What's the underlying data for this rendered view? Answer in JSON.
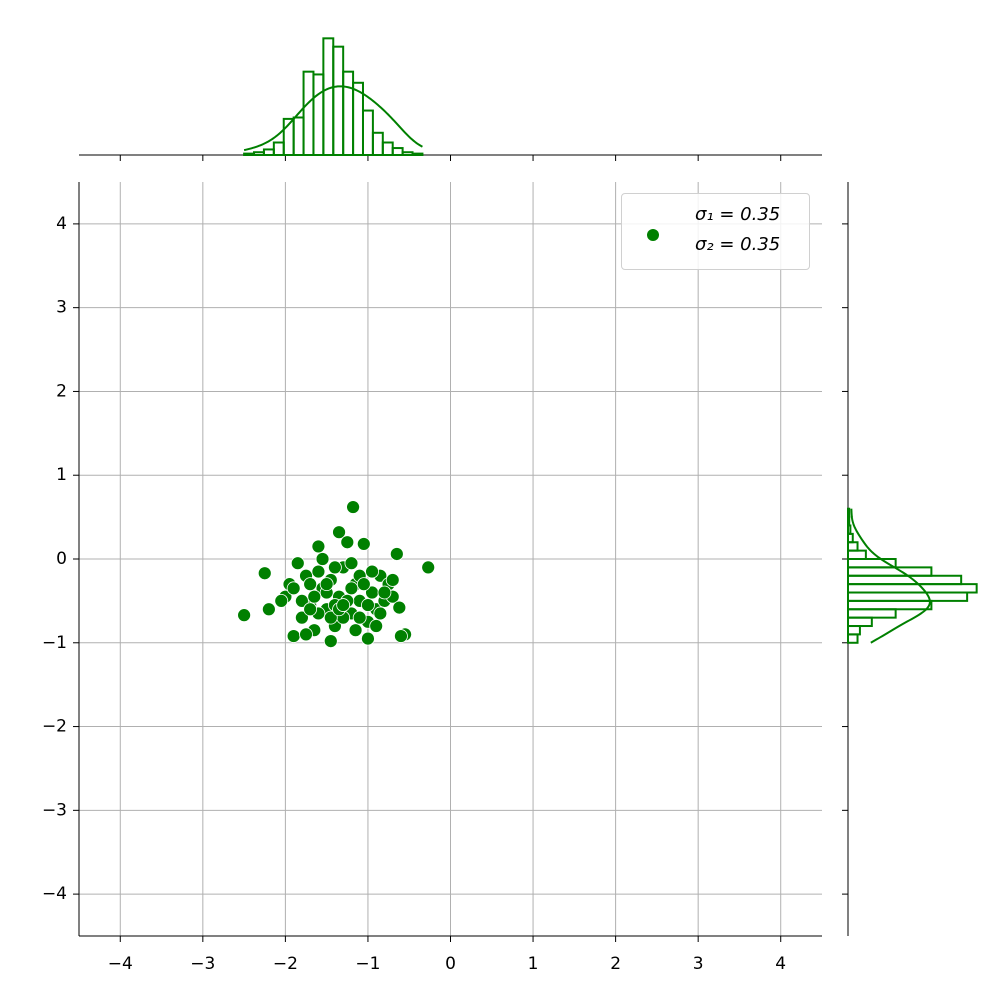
{
  "chart_data": [
    {
      "type": "scatter",
      "series": [
        {
          "name": "σ₁ = 0.35\nσ₂ = 0.35",
          "color": "#008000",
          "x": [
            -2.5,
            -2.25,
            -1.18,
            -0.27,
            -0.55,
            -0.6,
            -1.45,
            -1.35,
            -0.65,
            -1.9,
            -2.2,
            -2.0,
            -1.95,
            -1.85,
            -1.8,
            -1.75,
            -1.7,
            -1.65,
            -1.6,
            -1.55,
            -1.5,
            -1.45,
            -1.4,
            -1.35,
            -1.3,
            -1.25,
            -1.2,
            -1.15,
            -1.1,
            -1.05,
            -1.0,
            -0.95,
            -0.9,
            -0.85,
            -0.8,
            -0.75,
            -0.7,
            -0.62,
            -1.9,
            -1.8,
            -1.7,
            -1.6,
            -1.5,
            -1.4,
            -1.3,
            -1.2,
            -1.1,
            -1.0,
            -0.9,
            -0.8,
            -1.55,
            -1.45,
            -1.25,
            -1.15,
            -1.05,
            -1.75,
            -1.65,
            -1.35,
            -0.95,
            -0.85,
            -2.05,
            -1.6,
            -1.2,
            -1.0,
            -0.7,
            -1.5,
            -1.3,
            -1.1,
            -1.4,
            -1.7
          ],
          "y": [
            -0.67,
            -0.17,
            0.62,
            -0.1,
            -0.9,
            -0.92,
            -0.98,
            0.32,
            0.06,
            -0.92,
            -0.6,
            -0.45,
            -0.3,
            -0.05,
            -0.7,
            -0.2,
            -0.55,
            -0.85,
            0.15,
            -0.35,
            -0.6,
            -0.25,
            -0.8,
            -0.45,
            -0.1,
            0.2,
            -0.65,
            -0.3,
            -0.5,
            0.18,
            -0.75,
            -0.4,
            -0.6,
            -0.2,
            -0.5,
            -0.3,
            -0.45,
            -0.58,
            -0.35,
            -0.5,
            -0.3,
            -0.15,
            -0.4,
            -0.55,
            -0.7,
            -0.35,
            -0.2,
            -0.55,
            -0.8,
            -0.4,
            0.0,
            -0.7,
            -0.5,
            -0.85,
            -0.3,
            -0.9,
            -0.45,
            -0.6,
            -0.15,
            -0.65,
            -0.5,
            -0.65,
            -0.05,
            -0.95,
            -0.25,
            -0.3,
            -0.55,
            -0.7,
            -0.1,
            -0.6
          ]
        }
      ],
      "xlim": [
        -4.5,
        4.5
      ],
      "ylim": [
        -4.5,
        4.5
      ],
      "xticks": [
        {
          "value": -4,
          "label": "−4"
        },
        {
          "value": -3,
          "label": "−3"
        },
        {
          "value": -2,
          "label": "−2"
        },
        {
          "value": -1,
          "label": "−1"
        },
        0,
        1,
        2,
        3,
        4
      ],
      "yticks": [
        {
          "value": -4,
          "label": "−4"
        },
        {
          "value": -3,
          "label": "−3"
        },
        {
          "value": -2,
          "label": "−2"
        },
        {
          "value": -1,
          "label": "−1"
        },
        0,
        1,
        2,
        3,
        4
      ],
      "grid": true,
      "legend": "upper right"
    },
    {
      "type": "histogram",
      "orientation": "vertical",
      "color": "#008000",
      "bins": [
        -2.5,
        -2.38,
        -2.26,
        -2.14,
        -2.02,
        -1.9,
        -1.78,
        -1.66,
        -1.54,
        -1.42,
        -1.3,
        -1.18,
        -1.06,
        -0.94,
        -0.82,
        -0.7,
        -0.58,
        -0.46,
        -0.34
      ],
      "values": [
        1,
        2,
        4,
        9,
        26,
        27,
        60,
        58,
        84,
        78,
        60,
        52,
        32,
        16,
        9,
        5,
        2,
        1
      ],
      "ylim": [
        0,
        90
      ]
    },
    {
      "type": "histogram",
      "orientation": "horizontal",
      "color": "#008000",
      "bins": [
        -1.0,
        -0.9,
        -0.8,
        -0.7,
        -0.6,
        -0.5,
        -0.4,
        -0.3,
        -0.2,
        -0.1,
        0.0,
        0.1,
        0.2,
        0.3,
        0.4,
        0.5,
        0.6
      ],
      "values": [
        8,
        10,
        20,
        40,
        70,
        100,
        108,
        95,
        70,
        40,
        15,
        8,
        4,
        2,
        1,
        1
      ],
      "xlim": [
        0,
        115
      ]
    }
  ]
}
